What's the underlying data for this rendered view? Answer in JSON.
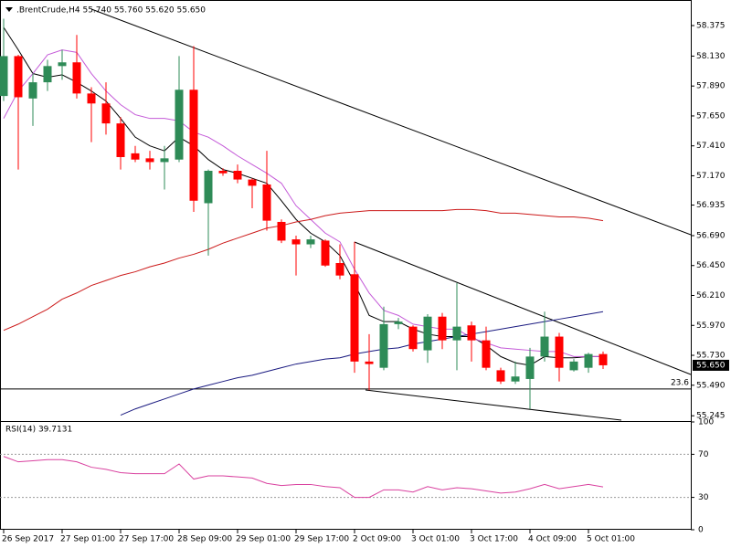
{
  "chart_data": [
    {
      "type": "candlestick",
      "title": ".BrentCrude,H4  55.740 55.760 55.620 55.650",
      "x": [
        "26 Sep 2017",
        null,
        null,
        null,
        "27 Sep 01:00",
        null,
        null,
        null,
        "27 Sep 17:00",
        null,
        null,
        null,
        "28 Sep 09:00",
        null,
        null,
        null,
        "29 Sep 01:00",
        null,
        null,
        null,
        "29 Sep 17:00",
        null,
        null,
        null,
        "2 Oct 09:00",
        null,
        null,
        null,
        "3 Oct 01:00",
        null,
        null,
        null,
        "3 Oct 17:00",
        null,
        null,
        null,
        "4 Oct 09:00",
        null,
        null,
        null,
        "5 Oct 01:00",
        null
      ],
      "open": [
        57.81,
        58.13,
        57.79,
        57.92,
        58.05,
        58.08,
        57.83,
        57.75,
        57.59,
        57.35,
        57.31,
        57.28,
        57.3,
        57.86,
        56.95,
        57.21,
        57.21,
        57.14,
        57.1,
        56.8,
        56.66,
        56.62,
        56.65,
        56.47,
        56.38,
        55.68,
        55.63,
        55.98,
        55.96,
        55.77,
        56.04,
        55.85,
        55.97,
        55.85,
        55.61,
        55.52,
        55.54,
        55.72,
        55.88,
        55.61,
        55.63,
        55.74
      ],
      "high": [
        58.43,
        58.14,
        57.99,
        58.1,
        58.18,
        58.3,
        57.88,
        57.92,
        57.64,
        57.41,
        57.37,
        57.41,
        58.13,
        58.21,
        57.22,
        57.23,
        57.26,
        57.15,
        57.37,
        56.82,
        56.69,
        56.69,
        56.66,
        56.62,
        56.64,
        55.9,
        56.12,
        56.03,
        55.97,
        56.06,
        56.07,
        56.31,
        56.0,
        55.96,
        55.63,
        55.68,
        55.79,
        56.08,
        55.91,
        55.7,
        55.75,
        55.76
      ],
      "low": [
        57.77,
        57.22,
        57.57,
        57.85,
        57.94,
        57.79,
        57.44,
        57.5,
        57.22,
        57.28,
        57.22,
        57.06,
        57.28,
        56.88,
        56.53,
        57.17,
        57.11,
        56.91,
        56.73,
        56.63,
        56.37,
        56.59,
        56.44,
        56.34,
        55.59,
        55.45,
        55.61,
        55.94,
        55.76,
        55.67,
        55.78,
        55.61,
        55.68,
        55.61,
        55.5,
        55.5,
        55.3,
        55.68,
        55.52,
        55.6,
        55.59,
        55.62
      ],
      "close": [
        58.13,
        57.8,
        57.92,
        58.05,
        58.08,
        57.83,
        57.75,
        57.59,
        57.32,
        57.3,
        57.28,
        57.31,
        57.86,
        56.97,
        57.21,
        57.19,
        57.14,
        57.09,
        56.81,
        56.65,
        56.62,
        56.66,
        56.45,
        56.37,
        55.68,
        55.66,
        55.98,
        56.0,
        55.78,
        56.04,
        55.85,
        55.96,
        55.85,
        55.63,
        55.52,
        55.56,
        55.72,
        55.88,
        55.63,
        55.68,
        55.74,
        55.65
      ],
      "up_color": "#2e8b57",
      "down_color": "#ff0000",
      "series": [
        {
          "color": "#000000",
          "values": [
            58.36,
            58.18,
            57.99,
            57.96,
            57.98,
            57.92,
            57.85,
            57.77,
            57.63,
            57.48,
            57.41,
            57.37,
            57.48,
            57.41,
            57.3,
            57.22,
            57.19,
            57.15,
            57.11,
            56.97,
            56.82,
            56.71,
            56.64,
            56.53,
            56.31,
            56.05,
            56.0,
            56.0,
            55.94,
            55.9,
            55.88,
            55.88,
            55.88,
            55.81,
            55.72,
            55.67,
            55.65,
            55.72,
            55.71,
            55.71,
            55.72,
            55.72
          ]
        },
        {
          "color": "#c45ad8",
          "values": [
            57.63,
            57.85,
            57.99,
            58.14,
            58.18,
            58.16,
            57.99,
            57.85,
            57.74,
            57.66,
            57.63,
            57.63,
            57.61,
            57.52,
            57.48,
            57.41,
            57.33,
            57.26,
            57.19,
            57.11,
            56.93,
            56.82,
            56.71,
            56.64,
            56.42,
            56.23,
            56.09,
            56.05,
            55.98,
            55.96,
            55.94,
            55.94,
            55.87,
            55.83,
            55.79,
            55.78,
            55.77,
            55.76,
            55.76,
            55.72,
            55.72,
            55.72
          ]
        },
        {
          "color": "#cc1a1a",
          "values": [
            55.93,
            55.98,
            56.04,
            56.1,
            56.18,
            56.23,
            56.29,
            56.33,
            56.37,
            56.4,
            56.44,
            56.47,
            56.51,
            56.54,
            56.58,
            56.63,
            56.67,
            56.71,
            56.75,
            56.77,
            56.8,
            56.82,
            56.85,
            56.87,
            56.88,
            56.89,
            56.89,
            56.89,
            56.89,
            56.89,
            56.89,
            56.9,
            56.9,
            56.89,
            56.87,
            56.87,
            56.86,
            56.85,
            56.84,
            56.84,
            56.83,
            56.81
          ]
        },
        {
          "color": "#1a1a80",
          "values": [
            null,
            null,
            null,
            null,
            null,
            null,
            null,
            null,
            55.25,
            55.3,
            55.34,
            55.38,
            55.42,
            55.46,
            55.49,
            55.52,
            55.55,
            55.57,
            55.6,
            55.63,
            55.66,
            55.68,
            55.7,
            55.71,
            55.74,
            55.76,
            55.78,
            55.79,
            55.82,
            55.84,
            55.86,
            55.88,
            55.9,
            55.92,
            55.94,
            55.96,
            55.98,
            56.0,
            56.02,
            56.04,
            56.06,
            56.08
          ]
        }
      ],
      "hline": {
        "value": 55.46,
        "label": "23.6"
      },
      "last_price": {
        "value": 55.65,
        "label": "55.650"
      },
      "ylim": [
        55.21,
        58.58
      ],
      "yticks": [
        {
          "value": 58.375,
          "label": "58.375"
        },
        {
          "value": 58.13,
          "label": "58.130"
        },
        {
          "value": 57.89,
          "label": "57.890"
        },
        {
          "value": 57.65,
          "label": "57.650"
        },
        {
          "value": 57.41,
          "label": "57.410"
        },
        {
          "value": 57.17,
          "label": "57.170"
        },
        {
          "value": 56.935,
          "label": "56.935"
        },
        {
          "value": 56.69,
          "label": "56.690"
        },
        {
          "value": 56.45,
          "label": "56.450"
        },
        {
          "value": 56.21,
          "label": "56.210"
        },
        {
          "value": 55.97,
          "label": "55.970"
        },
        {
          "value": 55.73,
          "label": "55.730"
        },
        {
          "value": 55.49,
          "label": "55.490"
        },
        {
          "value": 55.245,
          "label": "55.245"
        }
      ]
    },
    {
      "type": "line",
      "title": "RSI(14) 39.7131",
      "values": [
        68,
        63,
        64,
        65,
        65,
        63,
        58,
        56,
        53,
        52,
        52,
        52,
        61,
        47,
        50,
        50,
        49,
        48,
        43,
        41,
        42,
        42,
        40,
        39,
        30,
        30,
        37,
        37,
        35,
        40,
        37,
        39,
        38,
        36,
        34,
        35,
        38,
        42,
        38,
        40,
        42,
        39.71
      ],
      "color": "#d9409f",
      "levels": [
        70,
        30
      ],
      "ylim": [
        0,
        100
      ],
      "yticks": [
        100,
        70,
        30,
        0
      ]
    }
  ]
}
